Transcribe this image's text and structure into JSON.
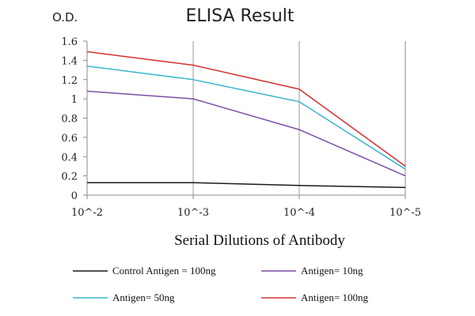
{
  "chart_data": {
    "type": "line",
    "title": "ELISA Result",
    "ylabel": "O.D.",
    "xlabel": "Serial Dilutions  of Antibody",
    "x": [
      0,
      1,
      2,
      3
    ],
    "x_tick_labels": [
      "10^-2",
      "10^-3",
      "10^-4",
      "10^-5"
    ],
    "ylim": [
      0,
      1.6
    ],
    "y_ticks": [
      0,
      0.2,
      0.4,
      0.6,
      0.8,
      1,
      1.2,
      1.4,
      1.6
    ],
    "y_tick_labels": [
      "0",
      "0.2",
      "0.4",
      "0.6",
      "0.8",
      "1",
      "1.2",
      "1.4",
      "1.6"
    ],
    "grid": "vertical",
    "legend_position": "bottom",
    "series": [
      {
        "name": "Control Antigen = 100ng",
        "color": "#1a1a1a",
        "values": [
          0.13,
          0.13,
          0.1,
          0.08
        ]
      },
      {
        "name": "Antigen= 10ng",
        "color": "#7b4fa6",
        "values": [
          1.08,
          1.0,
          0.68,
          0.2
        ]
      },
      {
        "name": "Antigen= 50ng",
        "color": "#3ab5cc",
        "values": [
          1.34,
          1.2,
          0.97,
          0.27
        ]
      },
      {
        "name": "Antigen= 100ng",
        "color": "#d43030",
        "values": [
          1.49,
          1.35,
          1.1,
          0.3
        ]
      }
    ]
  }
}
